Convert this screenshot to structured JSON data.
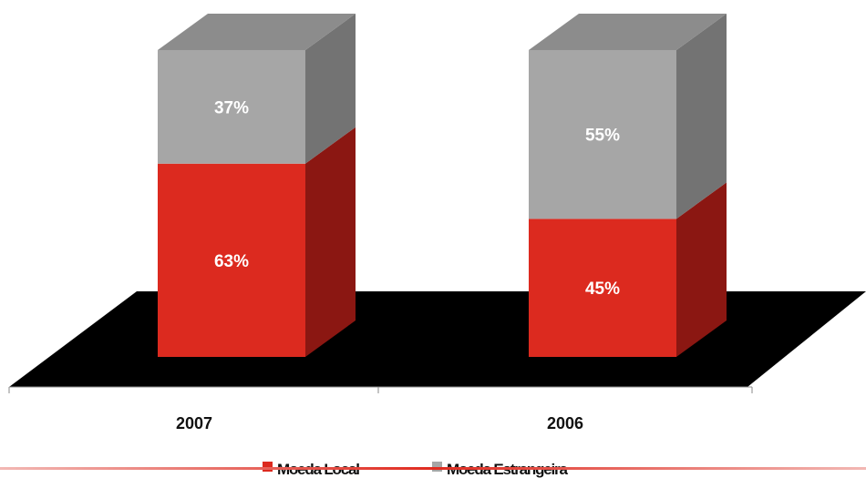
{
  "chart_data": {
    "type": "bar",
    "stacked": true,
    "three_d": true,
    "categories": [
      "2007",
      "2006"
    ],
    "series": [
      {
        "name": "Moeda Local",
        "values": [
          63,
          45
        ],
        "color": "#dc2a1f",
        "side_color": "#8b1712",
        "top_color": "#b0231b"
      },
      {
        "name": "Moeda Estrangeira",
        "values": [
          37,
          55
        ],
        "color": "#a6a6a6",
        "side_color": "#737373",
        "top_color": "#8c8c8c"
      }
    ],
    "data_labels": [
      [
        "63%",
        "45%"
      ],
      [
        "37%",
        "55%"
      ]
    ],
    "ylim": [
      0,
      100
    ],
    "floor_color": "#000000",
    "legend_position": "bottom",
    "grid": false
  },
  "legend": {
    "items": [
      {
        "label": "Moeda Local",
        "color": "#dc2a1f"
      },
      {
        "label": "Moeda Estrangeira",
        "color": "#a6a6a6"
      }
    ]
  },
  "footer_line_color": "#e02b20"
}
